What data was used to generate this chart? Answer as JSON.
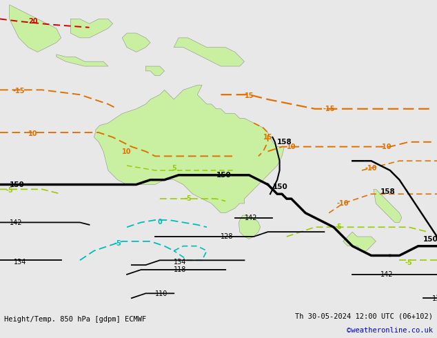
{
  "title_left": "Height/Temp. 850 hPa [gdpm] ECMWF",
  "title_right": "Th 30-05-2024 12:00 UTC (06+102)",
  "credit": "©weatheronline.co.uk",
  "ocean_color": "#e8e8e8",
  "land_color": "#c8f0a0",
  "land_border_color": "#909090",
  "fig_width": 6.34,
  "fig_height": 4.9,
  "dpi": 100,
  "lon_min": 93,
  "lon_max": 186,
  "lat_min": -59,
  "lat_max": 6
}
